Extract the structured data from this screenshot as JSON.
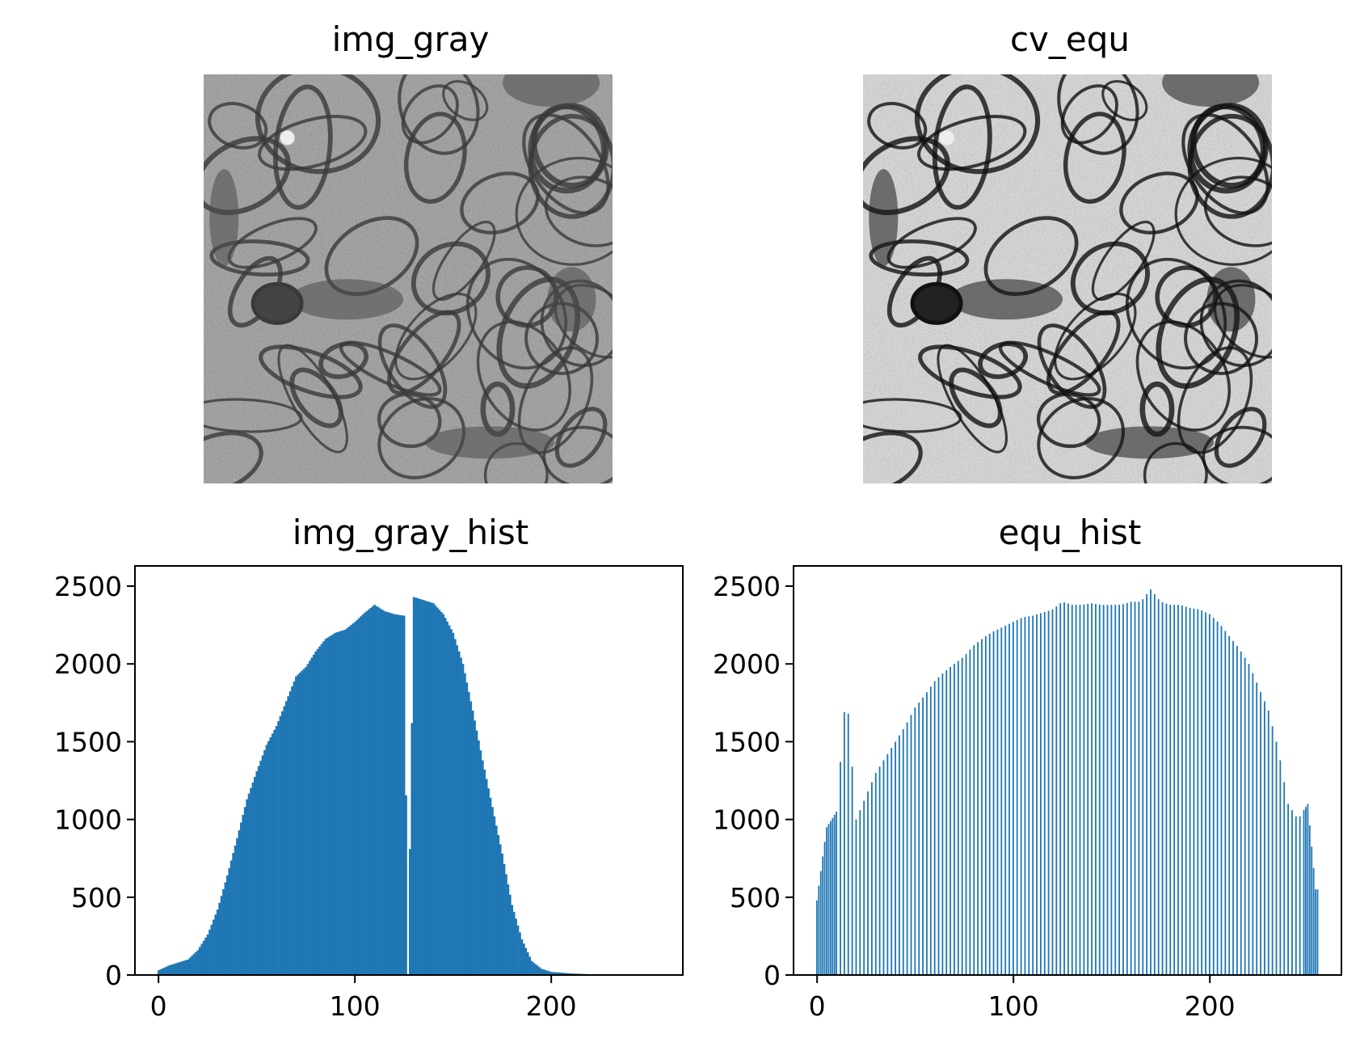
{
  "figure": {
    "panels": {
      "img_gray": {
        "title": "img_gray",
        "image_description": "grayscale electron micrograph of neural tissue"
      },
      "cv_equ": {
        "title": "cv_equ",
        "image_description": "histogram-equalized electron micrograph, higher contrast"
      },
      "img_gray_hist": {
        "title": "img_gray_hist"
      },
      "equ_hist": {
        "title": "equ_hist"
      }
    }
  },
  "chart_data": [
    {
      "type": "bar",
      "title": "img_gray_hist",
      "xlabel": "",
      "ylabel": "",
      "xlim": [
        -12,
        267
      ],
      "ylim": [
        0,
        2630
      ],
      "xticks": [
        0,
        100,
        200
      ],
      "yticks": [
        0,
        500,
        1000,
        1500,
        2000,
        2500
      ],
      "color": "#1f77b4",
      "x": [
        0,
        5,
        10,
        15,
        20,
        25,
        30,
        35,
        40,
        45,
        50,
        55,
        60,
        65,
        70,
        75,
        80,
        85,
        90,
        95,
        100,
        105,
        110,
        115,
        120,
        125,
        127,
        130,
        135,
        140,
        145,
        150,
        155,
        160,
        165,
        170,
        175,
        180,
        185,
        190,
        195,
        200,
        210,
        220,
        230,
        240,
        250,
        255
      ],
      "values": [
        30,
        60,
        80,
        100,
        160,
        260,
        420,
        640,
        880,
        1130,
        1310,
        1480,
        1600,
        1760,
        1920,
        1980,
        2080,
        2160,
        2200,
        2220,
        2270,
        2330,
        2380,
        2340,
        2320,
        2310,
        0,
        2430,
        2410,
        2390,
        2320,
        2200,
        2000,
        1700,
        1380,
        1080,
        780,
        450,
        230,
        90,
        40,
        20,
        10,
        5,
        5,
        5,
        5,
        0
      ]
    },
    {
      "type": "bar",
      "title": "equ_hist",
      "xlabel": "",
      "ylabel": "",
      "xlim": [
        -12,
        267
      ],
      "ylim": [
        0,
        2630
      ],
      "xticks": [
        0,
        100,
        200
      ],
      "yticks": [
        0,
        500,
        1000,
        1500,
        2000,
        2500
      ],
      "color": "#1f77b4",
      "x": [
        0,
        5,
        10,
        15,
        20,
        25,
        30,
        35,
        40,
        45,
        50,
        55,
        60,
        65,
        70,
        75,
        80,
        85,
        90,
        95,
        100,
        105,
        110,
        115,
        120,
        125,
        130,
        135,
        140,
        145,
        150,
        155,
        160,
        165,
        170,
        175,
        180,
        185,
        190,
        195,
        200,
        205,
        210,
        215,
        220,
        225,
        230,
        235,
        240,
        245,
        250,
        254
      ],
      "values": [
        480,
        950,
        1050,
        1850,
        1000,
        1150,
        1300,
        1400,
        1500,
        1600,
        1720,
        1800,
        1890,
        1950,
        2000,
        2050,
        2120,
        2170,
        2210,
        2240,
        2270,
        2300,
        2310,
        2330,
        2350,
        2400,
        2380,
        2380,
        2390,
        2380,
        2380,
        2380,
        2400,
        2400,
        2480,
        2400,
        2380,
        2380,
        2360,
        2350,
        2320,
        2260,
        2180,
        2100,
        2000,
        1850,
        1700,
        1450,
        1100,
        1000,
        1100,
        550
      ]
    }
  ]
}
